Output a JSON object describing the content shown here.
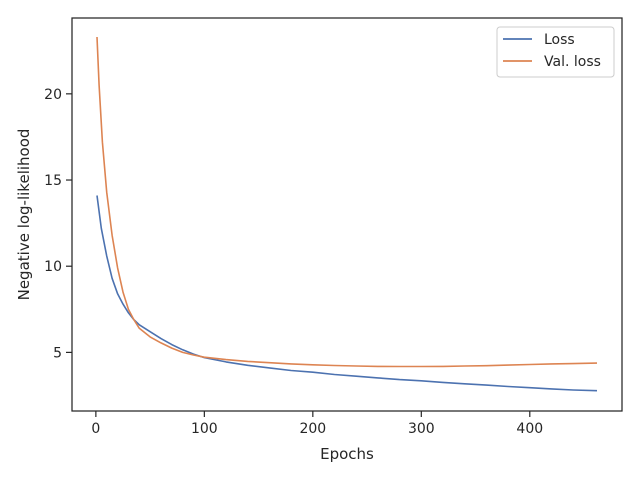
{
  "chart_data": {
    "type": "line",
    "xlabel": "Epochs",
    "ylabel": "Negative log-likelihood",
    "xlim": [
      -22,
      485
    ],
    "ylim": [
      1.6,
      24.4
    ],
    "xticks": [
      0,
      100,
      200,
      300,
      400
    ],
    "yticks": [
      5,
      10,
      15,
      20
    ],
    "legend_position": "top-right",
    "grid": false,
    "series": [
      {
        "name": "Loss",
        "color": "#4c72b0",
        "x": [
          1,
          5,
          10,
          15,
          20,
          25,
          30,
          35,
          40,
          50,
          60,
          70,
          80,
          90,
          100,
          120,
          140,
          160,
          180,
          200,
          220,
          240,
          260,
          280,
          300,
          320,
          340,
          360,
          380,
          400,
          420,
          440,
          462
        ],
        "y": [
          14.1,
          12.2,
          10.6,
          9.3,
          8.4,
          7.8,
          7.3,
          6.9,
          6.6,
          6.2,
          5.8,
          5.45,
          5.15,
          4.9,
          4.7,
          4.45,
          4.25,
          4.1,
          3.95,
          3.85,
          3.72,
          3.62,
          3.52,
          3.42,
          3.35,
          3.26,
          3.18,
          3.1,
          3.02,
          2.95,
          2.88,
          2.82,
          2.78
        ]
      },
      {
        "name": "Val. loss",
        "color": "#dd8452",
        "x": [
          1,
          3,
          6,
          10,
          15,
          20,
          25,
          30,
          35,
          40,
          50,
          60,
          70,
          80,
          90,
          100,
          120,
          140,
          160,
          180,
          200,
          220,
          240,
          260,
          280,
          300,
          320,
          340,
          360,
          380,
          400,
          420,
          440,
          462
        ],
        "y": [
          23.3,
          20.5,
          17.2,
          14.3,
          11.8,
          9.9,
          8.5,
          7.5,
          6.9,
          6.4,
          5.9,
          5.55,
          5.25,
          5.0,
          4.85,
          4.72,
          4.58,
          4.48,
          4.4,
          4.33,
          4.28,
          4.24,
          4.21,
          4.19,
          4.18,
          4.18,
          4.19,
          4.21,
          4.23,
          4.26,
          4.3,
          4.33,
          4.35,
          4.38
        ]
      }
    ]
  }
}
